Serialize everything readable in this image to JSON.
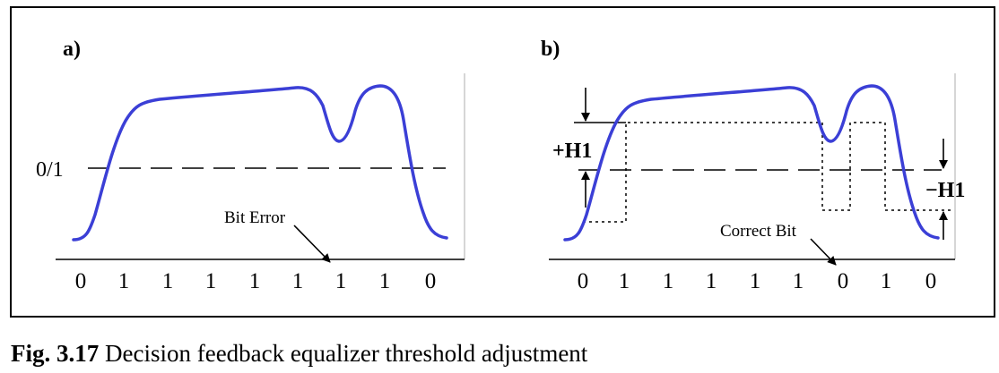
{
  "panels": {
    "a": {
      "label": "a)",
      "threshold_label": "0/1",
      "annotation": "Bit Error",
      "bits": [
        "0",
        "1",
        "1",
        "1",
        "1",
        "1",
        "1",
        "1",
        "0"
      ]
    },
    "b": {
      "label": "b)",
      "plus_label": "+H1",
      "minus_label": "−H1",
      "annotation": "Correct Bit",
      "bits": [
        "0",
        "1",
        "1",
        "1",
        "1",
        "1",
        "0",
        "1",
        "0"
      ]
    }
  },
  "caption": {
    "prefix": "Fig. 3.17",
    "text": " Decision feedback equalizer threshold adjustment"
  },
  "colors": {
    "signal": "#3b3fd6",
    "line": "#000000"
  }
}
